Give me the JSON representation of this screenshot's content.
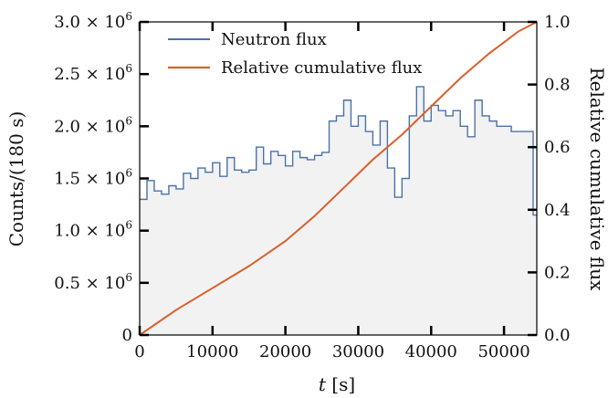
{
  "chart_data": {
    "type": "line",
    "xlabel_var": "t",
    "xlabel_unit": " [s]",
    "ylabel_left": "Counts/(180 s)",
    "ylabel_right": "Relative cumulative flux",
    "xlim": [
      0,
      54500
    ],
    "ylim_left": [
      0,
      3000000
    ],
    "ylim_right": [
      0,
      1.0
    ],
    "x_ticks": [
      0,
      10000,
      20000,
      30000,
      40000,
      50000
    ],
    "x_tick_labels": [
      "0",
      "10000",
      "20000",
      "30000",
      "40000",
      "50000"
    ],
    "y_left_ticks": [
      0,
      500000,
      1000000,
      1500000,
      2000000,
      2500000,
      3000000
    ],
    "y_left_tick_labels": [
      {
        "mant": "0",
        "exp": ""
      },
      {
        "mant": "0.5 × 10",
        "exp": "6"
      },
      {
        "mant": "1.0 × 10",
        "exp": "6"
      },
      {
        "mant": "1.5 × 10",
        "exp": "6"
      },
      {
        "mant": "2.0 × 10",
        "exp": "6"
      },
      {
        "mant": "2.5 × 10",
        "exp": "6"
      },
      {
        "mant": "3.0 × 10",
        "exp": "6"
      }
    ],
    "y_right_ticks": [
      0,
      0.2,
      0.4,
      0.6,
      0.8,
      1.0
    ],
    "y_right_tick_labels": [
      "0.0",
      "0.2",
      "0.4",
      "0.6",
      "0.8",
      "1.0"
    ],
    "legend_position": "top-left",
    "grid": false,
    "series": [
      {
        "name": "Neutron flux",
        "axis": "left",
        "style": "step-filled",
        "color": "#4a72a6",
        "fill": "#f2f2f2",
        "x": [
          0,
          1000,
          2000,
          3000,
          4000,
          5000,
          6000,
          7000,
          8000,
          9000,
          10000,
          11000,
          12000,
          13000,
          14000,
          15000,
          16000,
          17000,
          18000,
          19000,
          20000,
          21000,
          22000,
          23000,
          24000,
          25000,
          26000,
          27000,
          28000,
          29000,
          30000,
          31000,
          32000,
          33000,
          34000,
          35000,
          36000,
          37000,
          38000,
          39000,
          40000,
          41000,
          42000,
          43000,
          44000,
          45000,
          46000,
          47000,
          48000,
          49000,
          50000,
          51000,
          52000,
          53000,
          54000
        ],
        "y": [
          1300000,
          1480000,
          1380000,
          1350000,
          1430000,
          1400000,
          1550000,
          1500000,
          1600000,
          1560000,
          1650000,
          1520000,
          1700000,
          1580000,
          1560000,
          1580000,
          1800000,
          1640000,
          1760000,
          1720000,
          1620000,
          1760000,
          1700000,
          1680000,
          1720000,
          1750000,
          2050000,
          2100000,
          2250000,
          2000000,
          2100000,
          1950000,
          1820000,
          2050000,
          1600000,
          1320000,
          1500000,
          2100000,
          2380000,
          2050000,
          2200000,
          2150000,
          2100000,
          2150000,
          2000000,
          1900000,
          2250000,
          2100000,
          2050000,
          2000000,
          2000000,
          1950000,
          1950000,
          1950000,
          1150000
        ]
      },
      {
        "name": "Relative cumulative flux",
        "axis": "right",
        "style": "line",
        "color": "#d95f2b",
        "x": [
          0,
          5000,
          10000,
          15000,
          20000,
          24000,
          28000,
          32000,
          36000,
          40000,
          44000,
          48000,
          52000,
          54500
        ],
        "y": [
          0.0,
          0.08,
          0.15,
          0.22,
          0.3,
          0.38,
          0.47,
          0.56,
          0.64,
          0.73,
          0.82,
          0.9,
          0.97,
          1.0
        ]
      }
    ]
  }
}
